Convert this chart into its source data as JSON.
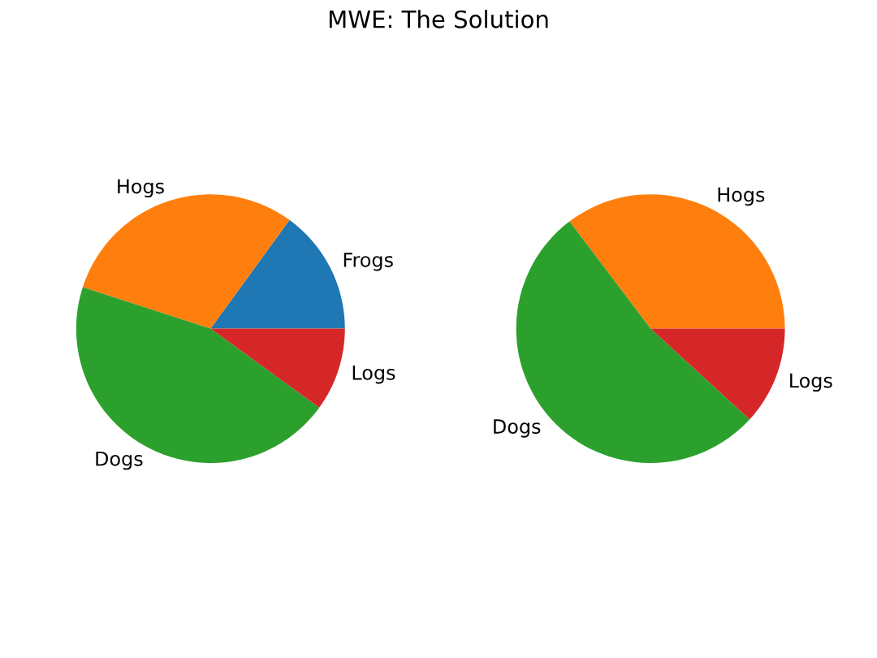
{
  "chart_data": [
    {
      "type": "pie",
      "title": "MWE: The Solution",
      "categories": [
        "Frogs",
        "Hogs",
        "Dogs",
        "Logs"
      ],
      "values": [
        15,
        30,
        45,
        10
      ],
      "colors": [
        "#1f77b4",
        "#ff7f0e",
        "#2ca02c",
        "#d62728"
      ]
    },
    {
      "type": "pie",
      "categories": [
        "Hogs",
        "Dogs",
        "Logs"
      ],
      "values": [
        35.3,
        52.9,
        11.8
      ],
      "colors": [
        "#ff7f0e",
        "#2ca02c",
        "#d62728"
      ]
    }
  ]
}
